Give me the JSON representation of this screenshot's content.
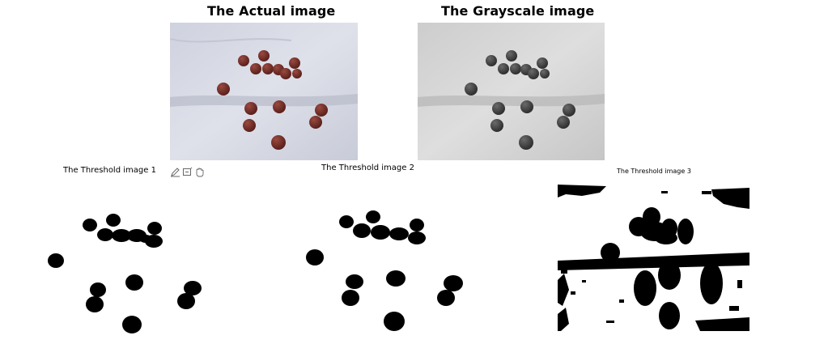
{
  "figure": {
    "actual_title": "The Actual image",
    "grayscale_title": "The Grayscale image",
    "threshold1_title": "The Threshold image 1",
    "threshold2_title": "The Threshold image 2",
    "threshold3_title": "The Threshold image 3"
  },
  "toolbar": {
    "icons": [
      "edit-icon",
      "zoom-box-icon",
      "pan-hand-icon"
    ]
  },
  "colors": {
    "background": "#ffffff",
    "cloth_light": "#d9dbe6",
    "cloth_shadow": "#bfc2cf",
    "ball_brown": "#6a2a24",
    "gray_bg": "#d6d6d6",
    "gray_ball": "#3c3c3c",
    "threshold_fg": "#000000"
  }
}
